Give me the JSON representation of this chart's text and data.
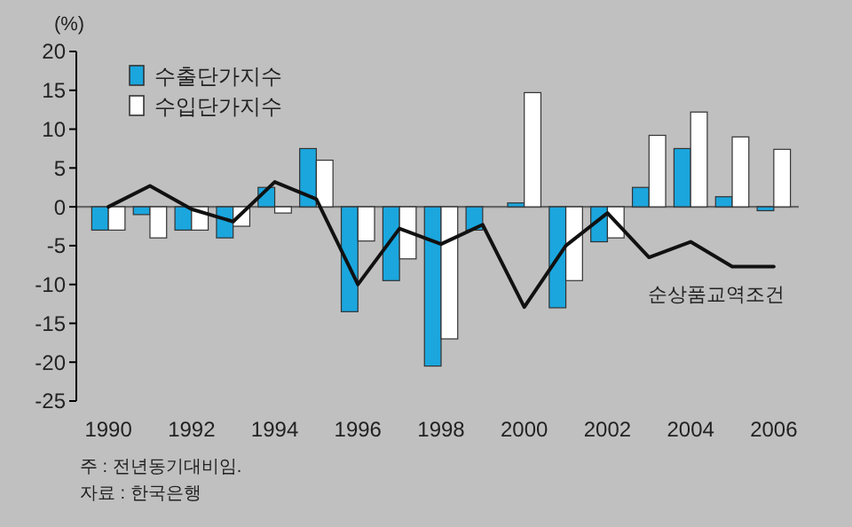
{
  "chart_data": {
    "type": "bar",
    "ylabel": "(%)",
    "categories": [
      "1990",
      null,
      "1992",
      null,
      "1994",
      null,
      "1996",
      null,
      "1998",
      null,
      "2000",
      null,
      "2002",
      null,
      "2004",
      null,
      "2006"
    ],
    "series": [
      {
        "name": "수출단가지수",
        "color": "#1ba6de",
        "values": [
          -3,
          -1,
          -3,
          -4,
          2.5,
          7.5,
          -13.5,
          -9.5,
          -20.5,
          -3,
          0.5,
          -13,
          -4.5,
          2.5,
          7.5,
          1.3,
          -0.5
        ]
      },
      {
        "name": "수입단가지수",
        "color": "#ffffff",
        "values": [
          -3,
          -4,
          -3,
          -2.5,
          -0.8,
          6,
          -4.4,
          -6.7,
          -17,
          0,
          14.7,
          -9.5,
          -4,
          9.2,
          12.2,
          9,
          7.4
        ]
      },
      {
        "name": "순상품교역조건",
        "type": "line",
        "color": "#111111",
        "values": [
          0,
          2.7,
          -0.3,
          -1.9,
          3.2,
          1,
          -10,
          -2.8,
          -4.8,
          -2.3,
          -12.9,
          -5,
          -0.8,
          -6.5,
          -4.5,
          -7.7,
          -7.7
        ]
      }
    ],
    "ylim": [
      -25,
      20
    ],
    "yticks": [
      20,
      15,
      10,
      5,
      0,
      -5,
      -10,
      -15,
      -20,
      -25
    ],
    "ref_lines": [
      {
        "axis": "y",
        "value": 0,
        "color": "#666666"
      }
    ],
    "legend": "top left",
    "annotations": [
      "주 : 전년동기대비임.",
      "자료 : 한국은행"
    ]
  }
}
